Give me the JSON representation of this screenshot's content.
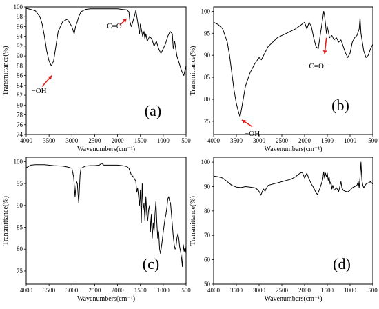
{
  "chart_data": [
    {
      "type": "line",
      "panel_label": "(a)",
      "xlabel": "Wavenumbers(cm⁻¹)",
      "ylabel": "Transmittance(%)",
      "xlim": [
        4000,
        500
      ],
      "ylim": [
        74,
        100
      ],
      "xticks": [
        4000,
        3500,
        3000,
        2500,
        2000,
        1500,
        1000,
        500
      ],
      "yticks": [
        74,
        76,
        78,
        80,
        82,
        84,
        86,
        88,
        90,
        92,
        94,
        96,
        98,
        100
      ],
      "annotations": [
        {
          "text": "−OH",
          "x": 3450,
          "y": 88.0
        },
        {
          "text": "−C=O−",
          "x": 1730,
          "y": 97.0
        }
      ],
      "series": [
        {
          "x": [
            4000,
            3900,
            3800,
            3700,
            3650,
            3600,
            3550,
            3500,
            3450,
            3400,
            3350,
            3300,
            3200,
            3100,
            3000,
            2950,
            2920,
            2880,
            2850,
            2800,
            2700,
            2600,
            2500,
            2400,
            2300,
            2200,
            2100,
            2000,
            1900,
            1800,
            1750,
            1730,
            1700,
            1680,
            1650,
            1620,
            1600,
            1560,
            1520,
            1500,
            1470,
            1450,
            1420,
            1400,
            1380,
            1350,
            1300,
            1250,
            1200,
            1150,
            1100,
            1050,
            1000,
            950,
            900,
            850,
            800,
            780,
            750,
            700,
            650,
            600,
            550,
            500
          ],
          "y": [
            99.7,
            99.5,
            99.2,
            98.0,
            96.5,
            94.0,
            91.0,
            89.0,
            88.0,
            89.0,
            92.0,
            95.0,
            97.0,
            97.5,
            96.0,
            94.5,
            96.0,
            97.0,
            98.0,
            99.0,
            99.5,
            99.6,
            99.6,
            99.6,
            99.6,
            99.6,
            99.6,
            99.6,
            99.5,
            99.4,
            99.0,
            97.0,
            96.0,
            96.5,
            97.5,
            98.5,
            99.3,
            97.0,
            94.5,
            96.5,
            95.0,
            94.0,
            95.0,
            93.5,
            94.5,
            93.0,
            94.0,
            93.5,
            92.0,
            93.0,
            91.5,
            90.5,
            91.5,
            92.5,
            94.0,
            95.0,
            94.5,
            91.5,
            93.0,
            90.0,
            88.5,
            87.0,
            86.0,
            88.0
          ]
        }
      ]
    },
    {
      "type": "line",
      "panel_label": "(b)",
      "xlabel": "Wavenumbers(cm⁻¹)",
      "ylabel": "Transmittance(%)",
      "xlim": [
        4000,
        500
      ],
      "ylim": [
        72,
        101
      ],
      "xticks": [
        4000,
        3500,
        3000,
        2500,
        2000,
        1500,
        1000,
        500
      ],
      "yticks": [
        75,
        80,
        85,
        90,
        95,
        100
      ],
      "annotations": [
        {
          "text": "−OH",
          "x": 3420,
          "y": 76.5
        },
        {
          "text": "−C=O−",
          "x": 1500,
          "y": 93.0
        }
      ],
      "series": [
        {
          "x": [
            4000,
            3900,
            3800,
            3700,
            3650,
            3600,
            3550,
            3500,
            3450,
            3420,
            3400,
            3350,
            3300,
            3200,
            3100,
            3000,
            2950,
            2900,
            2800,
            2600,
            2400,
            2200,
            2000,
            1950,
            1900,
            1850,
            1800,
            1750,
            1700,
            1650,
            1600,
            1580,
            1560,
            1540,
            1520,
            1500,
            1480,
            1450,
            1400,
            1350,
            1300,
            1250,
            1200,
            1150,
            1100,
            1050,
            1000,
            950,
            900,
            850,
            800,
            780,
            760,
            700,
            650,
            600,
            550,
            500
          ],
          "y": [
            97.5,
            97.0,
            96.0,
            93.0,
            90.0,
            86.0,
            82.0,
            79.0,
            77.0,
            76.0,
            77.0,
            80.0,
            83.0,
            86.0,
            88.0,
            89.5,
            89.0,
            90.0,
            92.0,
            94.0,
            95.0,
            96.0,
            97.5,
            96.0,
            97.5,
            96.5,
            94.0,
            92.0,
            91.5,
            95.0,
            98.5,
            100.0,
            99.0,
            97.0,
            95.0,
            96.5,
            95.5,
            94.0,
            94.5,
            93.5,
            94.0,
            93.0,
            93.5,
            92.0,
            90.5,
            89.5,
            90.5,
            93.0,
            94.0,
            94.5,
            96.0,
            98.5,
            95.0,
            91.0,
            89.5,
            90.0,
            91.5,
            92.5
          ]
        }
      ]
    },
    {
      "type": "line",
      "panel_label": "(c)",
      "xlabel": "Wavenumbers(cm⁻¹)",
      "ylabel": "Transmittance(%)",
      "xlim": [
        4000,
        500
      ],
      "ylim": [
        72,
        101
      ],
      "xticks": [
        4000,
        3500,
        3000,
        2500,
        2000,
        1500,
        1000,
        500
      ],
      "yticks": [
        75,
        80,
        85,
        90,
        95,
        100
      ],
      "series": [
        {
          "x": [
            4000,
            3900,
            3800,
            3600,
            3400,
            3200,
            3100,
            3000,
            2960,
            2930,
            2900,
            2880,
            2850,
            2820,
            2800,
            2700,
            2600,
            2500,
            2400,
            2350,
            2300,
            2200,
            2100,
            2000,
            1900,
            1800,
            1750,
            1700,
            1650,
            1600,
            1580,
            1560,
            1540,
            1520,
            1500,
            1480,
            1460,
            1440,
            1420,
            1400,
            1380,
            1360,
            1340,
            1320,
            1300,
            1280,
            1260,
            1240,
            1220,
            1200,
            1180,
            1160,
            1140,
            1120,
            1100,
            1080,
            1060,
            1040,
            1020,
            1000,
            980,
            960,
            940,
            920,
            900,
            880,
            860,
            840,
            820,
            800,
            780,
            760,
            740,
            720,
            700,
            680,
            660,
            640,
            620,
            600,
            580,
            560,
            540,
            520,
            500
          ],
          "y": [
            98.6,
            99.2,
            99.3,
            99.3,
            99.1,
            99.0,
            98.8,
            98.5,
            96.5,
            92.0,
            95.5,
            95.0,
            90.5,
            97.0,
            98.5,
            99.0,
            99.1,
            99.1,
            99.2,
            99.6,
            99.2,
            99.2,
            99.2,
            99.2,
            99.1,
            98.9,
            98.5,
            97.0,
            96.5,
            95.5,
            93.0,
            94.0,
            92.0,
            90.0,
            93.5,
            86.0,
            95.0,
            89.0,
            90.5,
            86.5,
            92.0,
            88.0,
            86.5,
            89.0,
            90.0,
            84.0,
            88.0,
            82.5,
            86.0,
            84.0,
            88.0,
            91.0,
            86.0,
            82.5,
            84.0,
            80.0,
            79.0,
            80.5,
            82.0,
            84.0,
            85.5,
            87.0,
            88.0,
            89.5,
            91.5,
            92.0,
            91.0,
            90.5,
            88.0,
            85.5,
            83.0,
            81.0,
            80.0,
            80.5,
            82.5,
            83.5,
            82.5,
            80.5,
            79.5,
            78.0,
            76.0,
            81.0,
            79.5,
            80.5,
            79.0
          ]
        }
      ]
    },
    {
      "type": "line",
      "panel_label": "(d)",
      "xlabel": "Wavenumbers(cm⁻¹)",
      "ylabel": "Transmittance(%)",
      "xlim": [
        4000,
        500
      ],
      "ylim": [
        50,
        102
      ],
      "xticks": [
        4000,
        3500,
        3000,
        2500,
        2000,
        1500,
        1000,
        500
      ],
      "yticks": [
        50,
        60,
        70,
        80,
        90,
        100
      ],
      "series": [
        {
          "x": [
            4000,
            3900,
            3800,
            3700,
            3600,
            3500,
            3400,
            3300,
            3200,
            3100,
            3050,
            3000,
            2960,
            2930,
            2900,
            2870,
            2850,
            2800,
            2700,
            2600,
            2500,
            2400,
            2300,
            2200,
            2100,
            2050,
            2000,
            1950,
            1900,
            1850,
            1800,
            1750,
            1720,
            1700,
            1650,
            1600,
            1580,
            1560,
            1540,
            1520,
            1500,
            1480,
            1460,
            1440,
            1420,
            1400,
            1380,
            1350,
            1300,
            1250,
            1200,
            1180,
            1150,
            1100,
            1050,
            1000,
            950,
            900,
            850,
            820,
            800,
            780,
            760,
            740,
            720,
            700,
            650,
            600,
            550,
            500
          ],
          "y": [
            94.3,
            94.0,
            93.5,
            92.0,
            90.5,
            89.8,
            89.6,
            90.0,
            89.8,
            89.5,
            89.0,
            88.0,
            86.5,
            88.0,
            89.0,
            88.0,
            89.0,
            90.5,
            91.0,
            91.5,
            92.0,
            92.5,
            93.0,
            94.0,
            95.5,
            95.8,
            93.5,
            95.5,
            93.0,
            91.0,
            89.5,
            87.5,
            86.8,
            87.5,
            90.0,
            93.0,
            96.0,
            93.5,
            95.5,
            94.0,
            95.5,
            92.5,
            94.0,
            91.0,
            92.0,
            89.0,
            90.5,
            88.5,
            89.5,
            88.0,
            92.0,
            89.5,
            88.5,
            88.0,
            87.8,
            88.5,
            89.5,
            90.0,
            90.5,
            92.0,
            89.5,
            94.0,
            100.0,
            92.5,
            90.5,
            89.5,
            91.0,
            91.5,
            92.0,
            91.0
          ]
        }
      ]
    }
  ]
}
